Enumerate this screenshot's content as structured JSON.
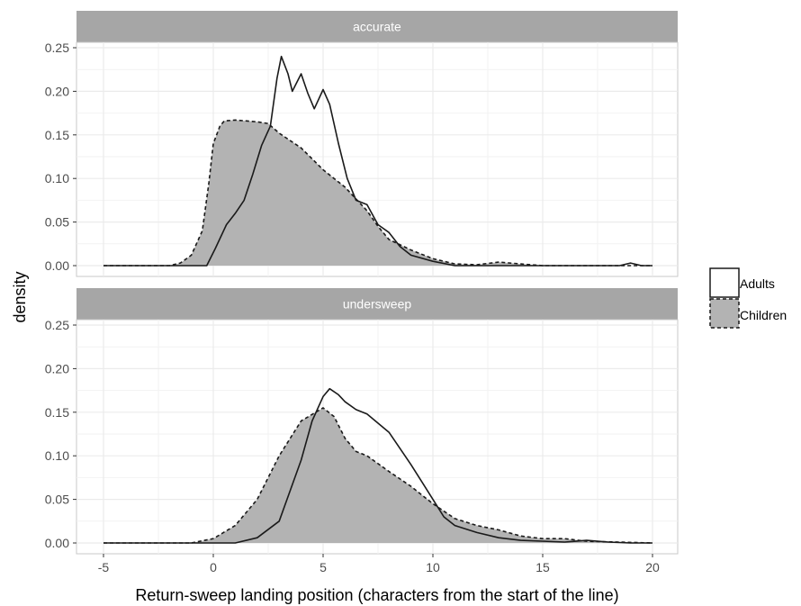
{
  "chart_data": {
    "type": "area",
    "xlabel": "Return-sweep landing position (characters from the start of the line)",
    "ylabel": "density",
    "xlim": [
      -5,
      20
    ],
    "ylim": [
      0,
      0.25
    ],
    "x_ticks": [
      "-5",
      "0",
      "5",
      "10",
      "15",
      "20"
    ],
    "y_ticks": [
      "0.00",
      "0.05",
      "0.10",
      "0.15",
      "0.20",
      "0.25"
    ],
    "grid": true,
    "legend_position": "right",
    "series_names": [
      "Adults",
      "Children"
    ],
    "colors": {
      "strip": "#a6a6a6",
      "children_fill": "#b3b3b3",
      "line": "#1a1a1a",
      "grid": "#ebebeb",
      "panel_border": "#c8c8c8"
    },
    "panels": [
      {
        "title": "accurate",
        "series": [
          {
            "name": "Children",
            "fill": true,
            "linetype": "dashed",
            "points": [
              [
                -5,
                0
              ],
              [
                -2,
                0
              ],
              [
                -1.5,
                0.003
              ],
              [
                -1,
                0.012
              ],
              [
                -0.5,
                0.04
              ],
              [
                -0.2,
                0.095
              ],
              [
                0,
                0.14
              ],
              [
                0.3,
                0.16
              ],
              [
                0.5,
                0.166
              ],
              [
                1,
                0.167
              ],
              [
                2,
                0.165
              ],
              [
                2.5,
                0.163
              ],
              [
                3,
                0.152
              ],
              [
                4,
                0.135
              ],
              [
                5,
                0.11
              ],
              [
                6,
                0.09
              ],
              [
                7,
                0.063
              ],
              [
                7.5,
                0.045
              ],
              [
                8,
                0.03
              ],
              [
                9,
                0.018
              ],
              [
                10,
                0.008
              ],
              [
                11,
                0.002
              ],
              [
                12,
                0.001
              ],
              [
                13,
                0.004
              ],
              [
                14,
                0.002
              ],
              [
                15,
                0
              ],
              [
                20,
                0
              ]
            ]
          },
          {
            "name": "Adults",
            "fill": false,
            "linetype": "solid",
            "points": [
              [
                -5,
                0
              ],
              [
                -0.3,
                0
              ],
              [
                0.1,
                0.02
              ],
              [
                0.6,
                0.047
              ],
              [
                1,
                0.06
              ],
              [
                1.4,
                0.075
              ],
              [
                1.8,
                0.105
              ],
              [
                2.2,
                0.138
              ],
              [
                2.6,
                0.16
              ],
              [
                2.9,
                0.215
              ],
              [
                3.1,
                0.24
              ],
              [
                3.4,
                0.22
              ],
              [
                3.6,
                0.2
              ],
              [
                4,
                0.22
              ],
              [
                4.3,
                0.198
              ],
              [
                4.6,
                0.18
              ],
              [
                5,
                0.202
              ],
              [
                5.3,
                0.185
              ],
              [
                5.7,
                0.14
              ],
              [
                6.1,
                0.1
              ],
              [
                6.5,
                0.075
              ],
              [
                7,
                0.07
              ],
              [
                7.5,
                0.047
              ],
              [
                8,
                0.038
              ],
              [
                8.5,
                0.022
              ],
              [
                9,
                0.012
              ],
              [
                10,
                0.005
              ],
              [
                11,
                0
              ],
              [
                18.5,
                0
              ],
              [
                19,
                0.003
              ],
              [
                19.5,
                0
              ],
              [
                20,
                0
              ]
            ]
          }
        ]
      },
      {
        "title": "undersweep",
        "series": [
          {
            "name": "Children",
            "fill": true,
            "linetype": "dashed",
            "points": [
              [
                -5,
                0
              ],
              [
                -1,
                0
              ],
              [
                0,
                0.005
              ],
              [
                1,
                0.02
              ],
              [
                2,
                0.05
              ],
              [
                3,
                0.1
              ],
              [
                4,
                0.14
              ],
              [
                5,
                0.155
              ],
              [
                5.5,
                0.145
              ],
              [
                6,
                0.12
              ],
              [
                6.5,
                0.105
              ],
              [
                7,
                0.1
              ],
              [
                8,
                0.082
              ],
              [
                9,
                0.065
              ],
              [
                9.5,
                0.055
              ],
              [
                10,
                0.045
              ],
              [
                11,
                0.028
              ],
              [
                12,
                0.02
              ],
              [
                13,
                0.015
              ],
              [
                14,
                0.008
              ],
              [
                15,
                0.005
              ],
              [
                16,
                0.005
              ],
              [
                17,
                0.002
              ],
              [
                20,
                0
              ]
            ]
          },
          {
            "name": "Adults",
            "fill": false,
            "linetype": "solid",
            "points": [
              [
                -5,
                0
              ],
              [
                1,
                0
              ],
              [
                2,
                0.006
              ],
              [
                3,
                0.025
              ],
              [
                4,
                0.095
              ],
              [
                4.5,
                0.14
              ],
              [
                5,
                0.168
              ],
              [
                5.3,
                0.177
              ],
              [
                5.7,
                0.17
              ],
              [
                6,
                0.162
              ],
              [
                6.5,
                0.153
              ],
              [
                7,
                0.148
              ],
              [
                8,
                0.127
              ],
              [
                9,
                0.09
              ],
              [
                9.5,
                0.07
              ],
              [
                10,
                0.05
              ],
              [
                10.5,
                0.03
              ],
              [
                11,
                0.02
              ],
              [
                12,
                0.012
              ],
              [
                13,
                0.006
              ],
              [
                14,
                0.003
              ],
              [
                16,
                0.001
              ],
              [
                17,
                0.003
              ],
              [
                18,
                0.001
              ],
              [
                19,
                0
              ],
              [
                20,
                0
              ]
            ]
          }
        ]
      }
    ]
  }
}
